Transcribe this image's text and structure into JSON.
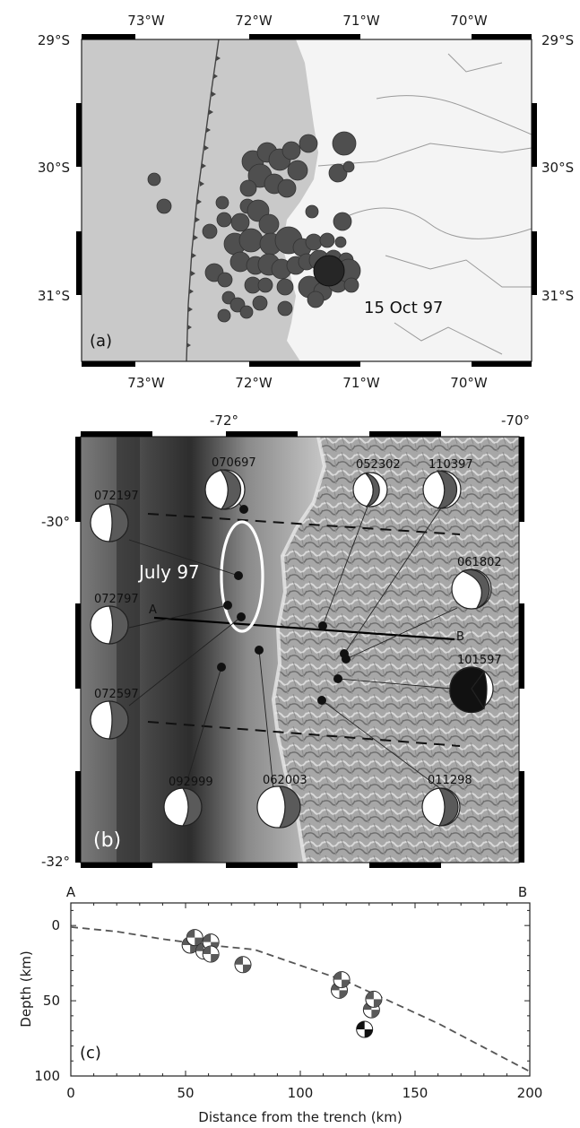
{
  "panel_a": {
    "label": "(a)",
    "annotation": "15 Oct 97",
    "lon_labels": [
      "73°W",
      "72°W",
      "71°W",
      "70°W"
    ],
    "lat_labels": [
      "29°S",
      "30°S",
      "31°S"
    ],
    "lon_range": [
      -73.5,
      -69.4
    ],
    "lat_range": [
      -31.6,
      -29.0
    ],
    "colors": {
      "ocean": "#c9c9c9",
      "land": "#f4f4f4",
      "event": "#4f4f4f",
      "mainshock": "#262626"
    }
  },
  "panel_b": {
    "label": "(b)",
    "annotation": "July 97",
    "lon_labels": [
      "-72°",
      "-70°"
    ],
    "lat_labels": [
      "-30°",
      "-32°"
    ],
    "profile_labels": [
      "A",
      "B"
    ],
    "mechanisms": [
      "072197",
      "070697",
      "052302",
      "110397",
      "072797",
      "061802",
      "101597",
      "072597",
      "092999",
      "062003",
      "011298"
    ],
    "colors": {
      "compressional": "#5a5a5a",
      "highlight": "#111111"
    }
  },
  "panel_c": {
    "label": "(c)",
    "profile_labels": [
      "A",
      "B"
    ],
    "xlabel": "Distance from the trench (km)",
    "ylabel": "Depth (km)",
    "x_ticks": [
      "0",
      "50",
      "100",
      "150",
      "200"
    ],
    "y_ticks": [
      "0",
      "50",
      "100"
    ]
  },
  "chart_data": {
    "type": "scatter",
    "xlabel": "Distance from the trench (km)",
    "ylabel": "Depth (km)",
    "xlim": [
      0,
      200
    ],
    "ylim": [
      100,
      -15
    ],
    "slab_interface": {
      "x": [
        0,
        20,
        40,
        60,
        80,
        120,
        160,
        200
      ],
      "y": [
        1,
        4,
        9,
        13,
        16,
        37,
        65,
        97
      ]
    },
    "events": [
      {
        "x": 52,
        "y": 13
      },
      {
        "x": 54,
        "y": 8
      },
      {
        "x": 58,
        "y": 17
      },
      {
        "x": 61,
        "y": 11
      },
      {
        "x": 61,
        "y": 19
      },
      {
        "x": 75,
        "y": 26
      },
      {
        "x": 117,
        "y": 43
      },
      {
        "x": 118,
        "y": 36
      },
      {
        "x": 128,
        "y": 69
      },
      {
        "x": 131,
        "y": 56
      },
      {
        "x": 132,
        "y": 49
      }
    ]
  }
}
